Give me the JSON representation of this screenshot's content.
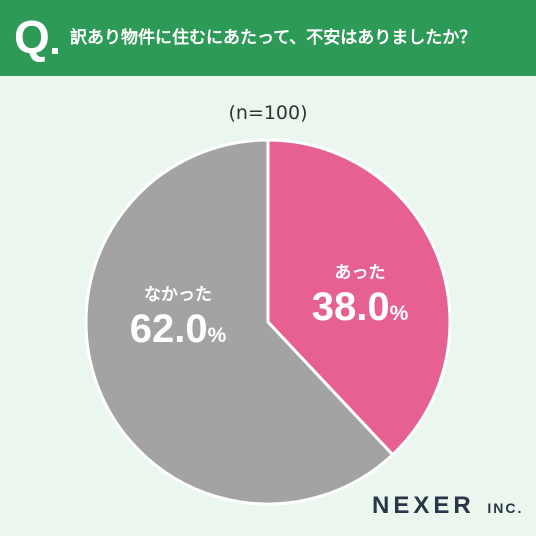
{
  "header": {
    "q_mark": "Q",
    "question": "訳あり物件に住むにあたって、不安はありましたか？"
  },
  "sample_size": "(n=100)",
  "colors": {
    "header_bg": "#2e9a58",
    "page_bg": "#eaf6ee",
    "yes": "#e66092",
    "no": "#a3a3a3"
  },
  "chart_data": {
    "type": "pie",
    "slices": [
      {
        "label": "あった",
        "value": 38.0,
        "display": "38.0",
        "unit": "%",
        "color": "#e66092"
      },
      {
        "label": "なかった",
        "value": 62.0,
        "display": "62.0",
        "unit": "%",
        "color": "#a3a3a3"
      }
    ]
  },
  "logo": {
    "main": "NEXER",
    "suffix": "INC."
  }
}
